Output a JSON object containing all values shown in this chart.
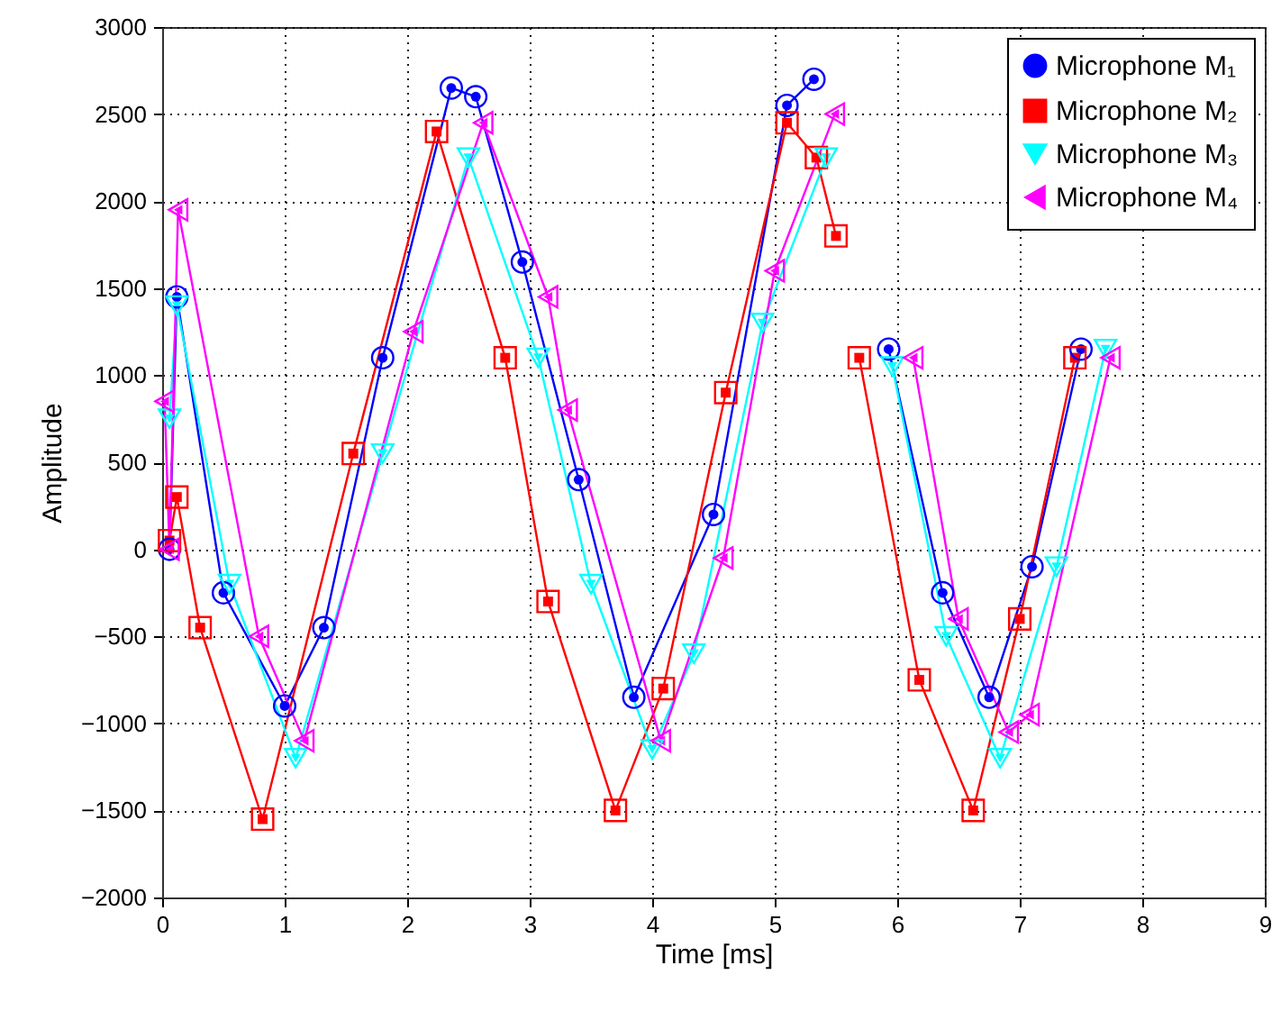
{
  "chart_data": {
    "type": "line",
    "xlabel": "Time [ms]",
    "ylabel": "Amplitude",
    "xlim": [
      0,
      9
    ],
    "xticks": [
      0,
      1,
      2,
      3,
      4,
      5,
      6,
      7,
      8,
      9
    ],
    "ylim": [
      -2000,
      3000
    ],
    "yticks": [
      -2000,
      -1500,
      -1000,
      -500,
      0,
      500,
      1000,
      1500,
      2000,
      2500,
      3000
    ],
    "grid": true,
    "legend": "top right",
    "line_style": "solid",
    "series": [
      {
        "name": "Microphone M₁",
        "color": "#0000ff",
        "marker": "circle",
        "x": [
          0.06,
          0.12,
          0.5,
          1.0,
          1.32,
          1.8,
          2.36,
          2.56,
          2.94,
          3.4,
          3.85,
          4.5,
          5.1,
          5.32,
          5.7,
          5.93,
          6.37,
          6.75,
          7.1,
          7.5
        ],
        "values": [
          0,
          1450,
          -250,
          -900,
          -450,
          1100,
          2650,
          2600,
          1650,
          400,
          -850,
          200,
          2550,
          2700,
          null,
          1150,
          -250,
          -850,
          -100,
          1150
        ]
      },
      {
        "name": "Microphone M₂",
        "color": "#ff0000",
        "marker": "square",
        "x": [
          0.06,
          0.12,
          0.31,
          0.82,
          1.56,
          2.24,
          2.8,
          3.15,
          3.7,
          4.09,
          4.6,
          5.1,
          5.34,
          5.5,
          5.6,
          5.69,
          6.18,
          6.62,
          7.0,
          7.45
        ],
        "values": [
          50,
          300,
          -450,
          -1550,
          550,
          2400,
          1100,
          -300,
          -1500,
          -800,
          900,
          2450,
          2250,
          1800,
          null,
          1100,
          -750,
          -1500,
          -400,
          1100
        ]
      },
      {
        "name": "Microphone M₃",
        "color": "#00ffff",
        "marker": "triangle",
        "x": [
          0.06,
          0.12,
          0.55,
          1.09,
          1.8,
          2.5,
          3.07,
          3.5,
          4.0,
          4.34,
          4.9,
          5.42,
          5.7,
          5.96,
          6.4,
          6.84,
          7.3,
          7.7
        ],
        "values": [
          750,
          1400,
          -200,
          -1200,
          550,
          2250,
          1100,
          -200,
          -1150,
          -600,
          1300,
          2250,
          null,
          1050,
          -500,
          -1200,
          -100,
          1150
        ]
      },
      {
        "name": "Microphone M₄",
        "color": "#ff00ff",
        "marker": "triangle-left",
        "x": [
          0.02,
          0.06,
          0.13,
          0.79,
          1.16,
          2.05,
          2.62,
          3.15,
          3.31,
          4.07,
          4.58,
          5.0,
          5.49,
          5.8,
          6.13,
          6.5,
          6.91,
          7.08,
          7.74
        ],
        "values": [
          850,
          0,
          1950,
          -500,
          -1100,
          1250,
          2450,
          1450,
          800,
          -1100,
          -50,
          1600,
          2500,
          null,
          1100,
          -400,
          -1050,
          -950,
          1100
        ]
      }
    ]
  }
}
